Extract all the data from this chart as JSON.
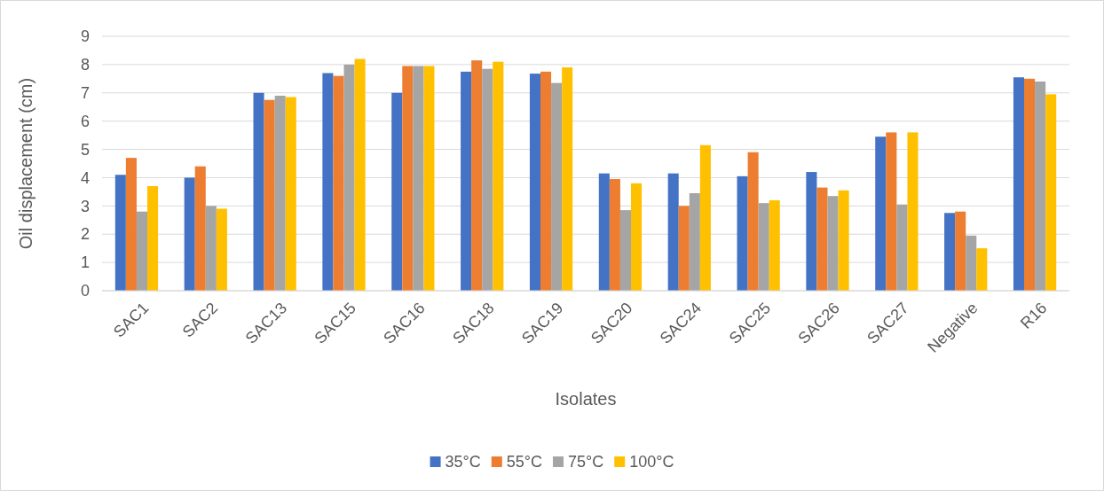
{
  "chart_data": {
    "type": "bar",
    "xlabel": "Isolates",
    "ylabel": "Oil displacement (cm)",
    "categories": [
      "SAC1",
      "SAC2",
      "SAC13",
      "SAC15",
      "SAC16",
      "SAC18",
      "SAC19",
      "SAC20",
      "SAC24",
      "SAC25",
      "SAC26",
      "SAC27",
      "Negative",
      "R16"
    ],
    "series": [
      {
        "name": "35°C",
        "color": "#4472c4",
        "values": [
          4.1,
          4.0,
          7.0,
          7.7,
          7.0,
          7.75,
          7.68,
          4.15,
          4.15,
          4.05,
          4.2,
          5.45,
          2.75,
          7.55
        ]
      },
      {
        "name": "55°C",
        "color": "#ed7d31",
        "values": [
          4.7,
          4.4,
          6.75,
          7.6,
          7.95,
          8.15,
          7.75,
          3.95,
          3.0,
          4.9,
          3.65,
          5.6,
          2.8,
          7.5
        ]
      },
      {
        "name": "75°C",
        "color": "#a5a5a5",
        "values": [
          2.8,
          3.0,
          6.9,
          8.0,
          7.95,
          7.85,
          7.35,
          2.85,
          3.45,
          3.1,
          3.35,
          3.05,
          1.95,
          7.4
        ]
      },
      {
        "name": "100°C",
        "color": "#ffc000",
        "values": [
          3.7,
          2.9,
          6.85,
          8.2,
          7.95,
          8.1,
          7.9,
          3.8,
          5.15,
          3.2,
          3.55,
          5.6,
          1.5,
          6.95
        ]
      }
    ],
    "ylim": [
      0,
      9
    ],
    "yticks": [
      0,
      1,
      2,
      3,
      4,
      5,
      6,
      7,
      8,
      9
    ],
    "grid": "y",
    "legend": "bottom"
  }
}
